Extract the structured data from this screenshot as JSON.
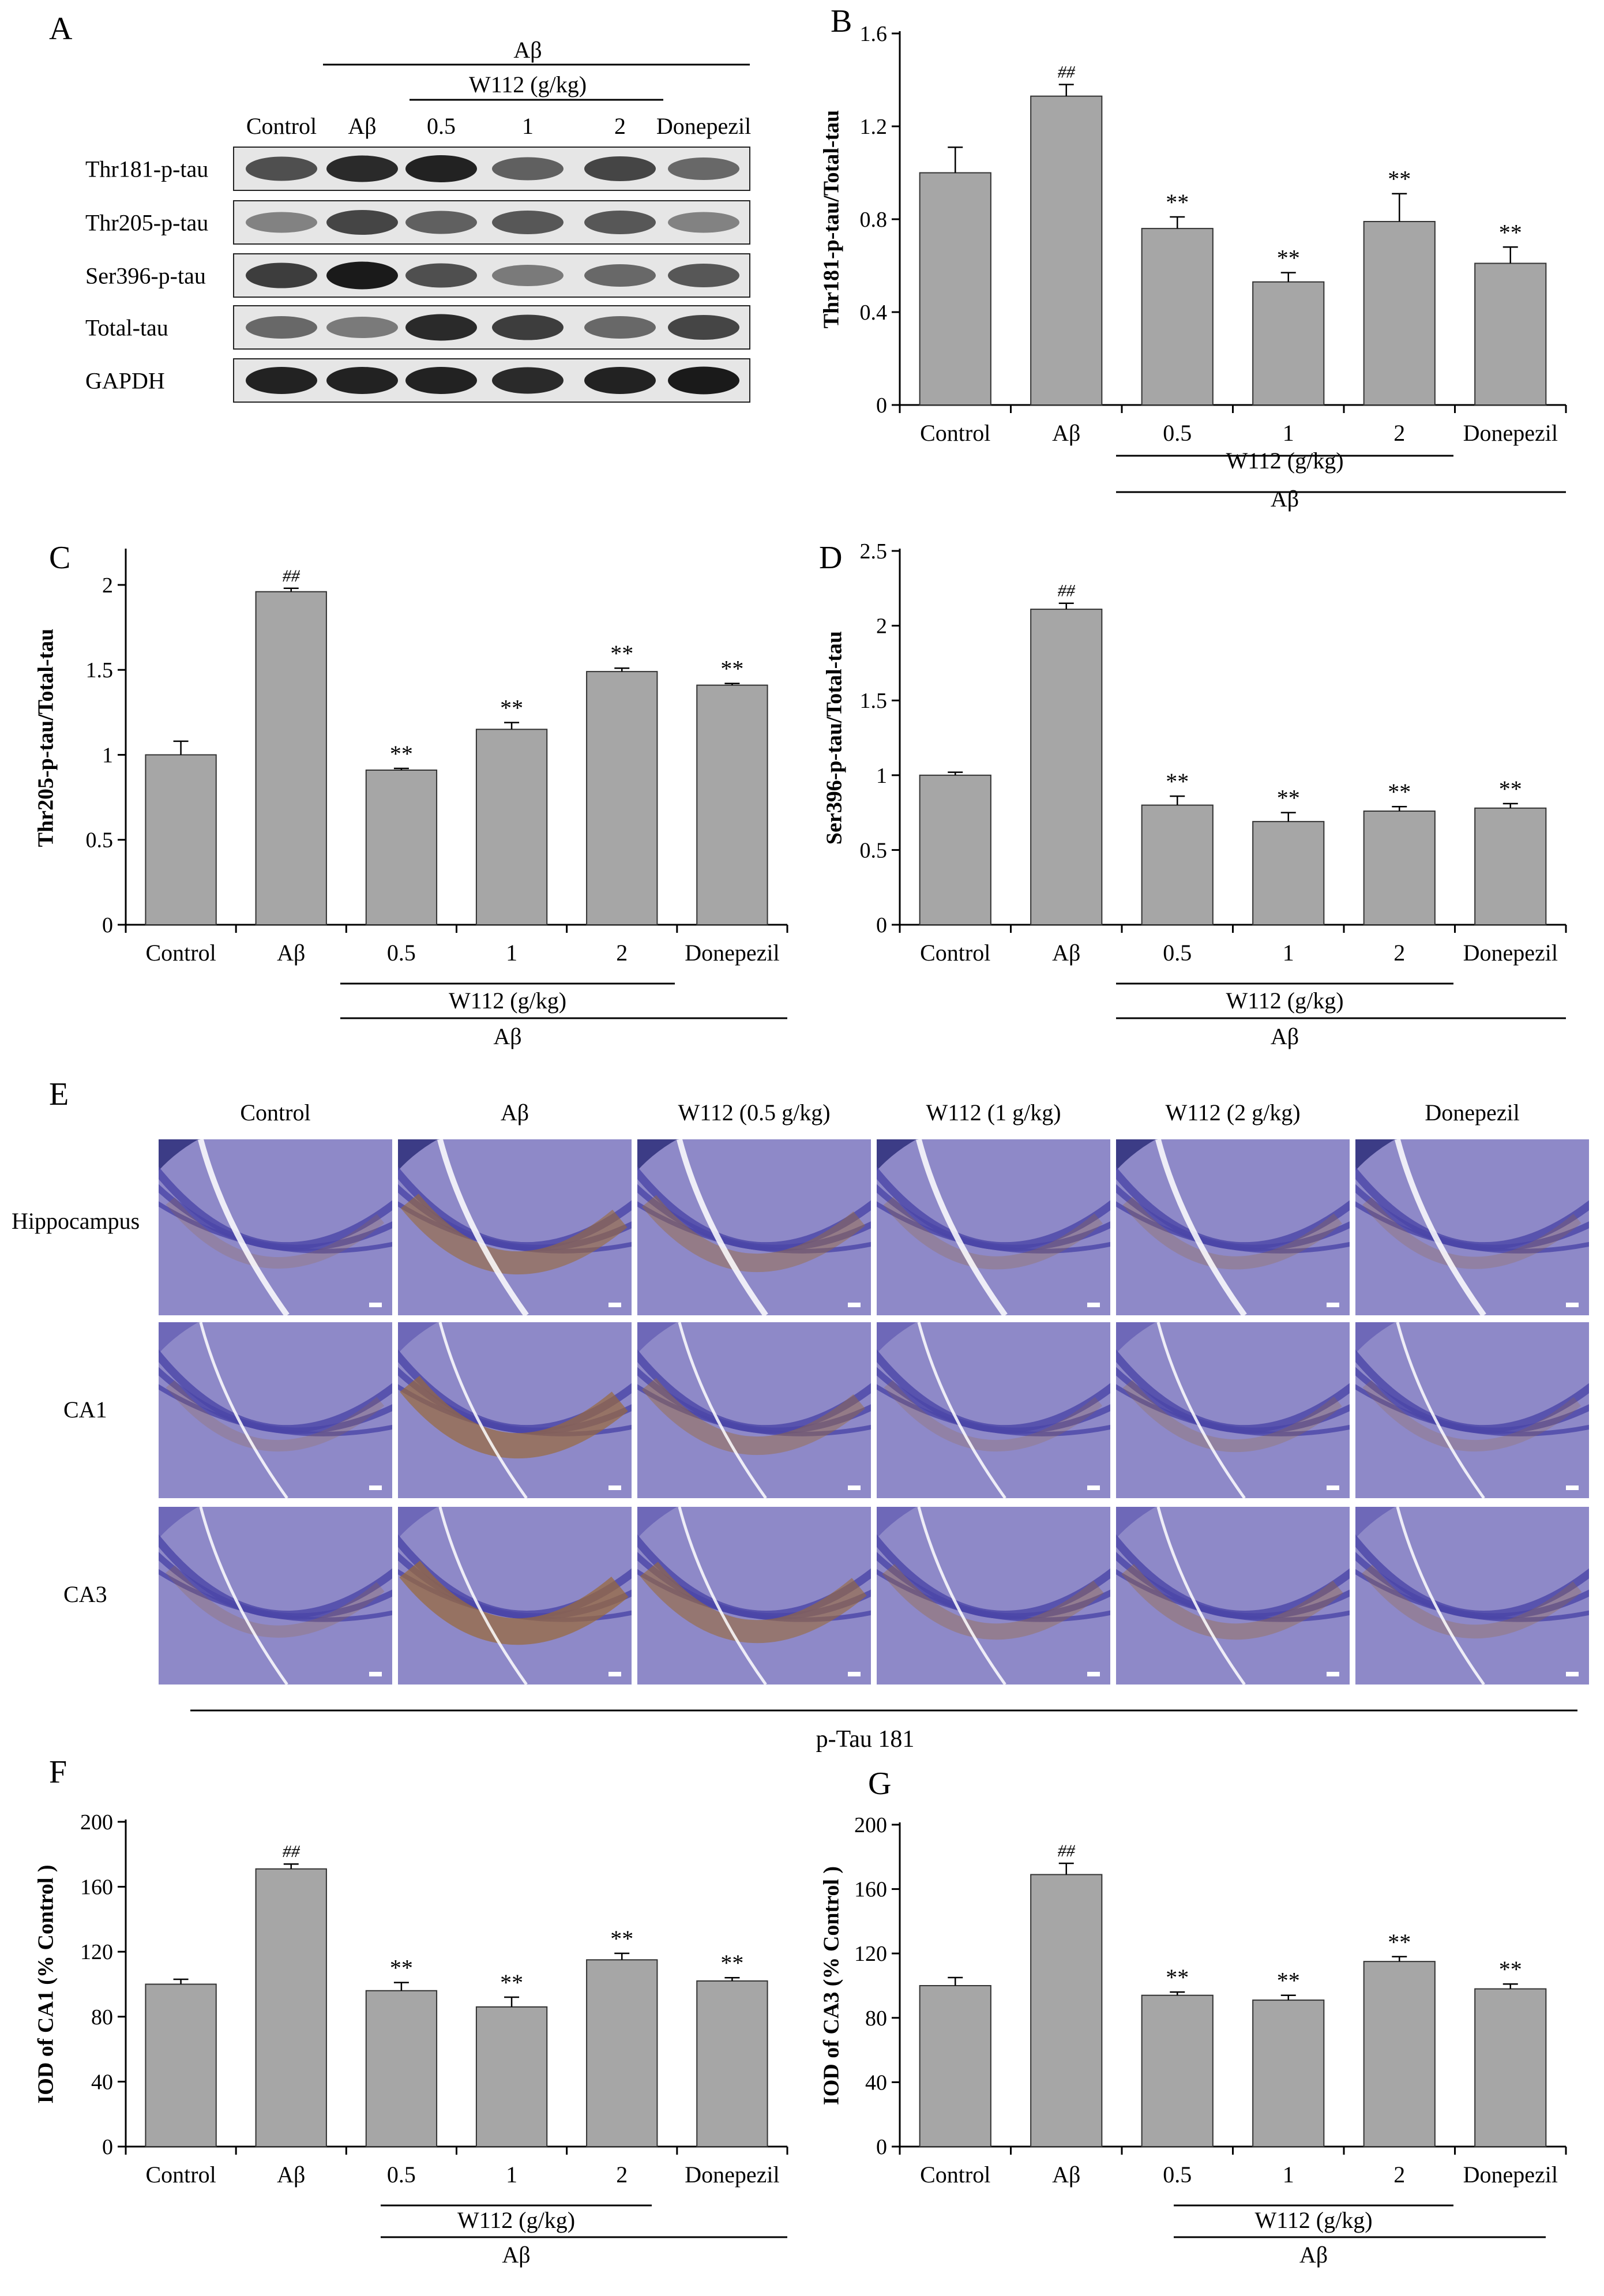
{
  "common": {
    "groups": [
      "Control",
      "Aβ",
      "0.5",
      "1",
      "2",
      "Donepezil"
    ],
    "w112_label": "W112  (g/kg)",
    "abeta_label": "Aβ",
    "sig_hash": "##",
    "sig_star": "**"
  },
  "colors": {
    "bar_fill": "#a6a6a6",
    "bar_stroke": "#333333",
    "western_bg": "#e6e6e6",
    "band": "#1a1a1a",
    "ihc_background": "#3c3c86",
    "ihc_tissue": "#8e89c8",
    "ihc_brown": "#9a6a3a"
  },
  "panel_a": {
    "letter": "A",
    "abeta_header": "Aβ",
    "w112_header": "W112  (g/kg)",
    "lanes": [
      "Control",
      "Aβ",
      "0.5",
      "1",
      "2",
      "Donepezil"
    ],
    "rows": [
      "Thr181-p-tau",
      "Thr205-p-tau",
      "Ser396-p-tau",
      "Total-tau",
      "GAPDH"
    ],
    "intensity": [
      [
        0.7,
        0.9,
        0.95,
        0.6,
        0.75,
        0.55
      ],
      [
        0.4,
        0.75,
        0.6,
        0.65,
        0.65,
        0.4
      ],
      [
        0.8,
        1.0,
        0.7,
        0.45,
        0.55,
        0.65
      ],
      [
        0.55,
        0.45,
        0.9,
        0.8,
        0.55,
        0.75
      ],
      [
        0.95,
        0.95,
        0.95,
        0.9,
        0.95,
        1.0
      ]
    ]
  },
  "chart_data": [
    {
      "id": "B",
      "letter": "B",
      "type": "bar",
      "categories": [
        "Control",
        "Aβ",
        "0.5",
        "1",
        "2",
        "Donepezil"
      ],
      "values": [
        1.0,
        1.33,
        0.76,
        0.53,
        0.79,
        0.61
      ],
      "errors": [
        0.11,
        0.05,
        0.05,
        0.04,
        0.12,
        0.07
      ],
      "annotations": [
        "",
        "##",
        "**",
        "**",
        "**",
        "**"
      ],
      "ylabel": "Thr181-p-tau/Total-tau",
      "ylim": [
        0,
        1.6
      ],
      "yticks": [
        "0",
        "0.4",
        "0.8",
        "1.2",
        "1.6"
      ],
      "ytick_values": [
        0,
        0.4,
        0.8,
        1.2,
        1.6
      ]
    },
    {
      "id": "C",
      "letter": "C",
      "type": "bar",
      "categories": [
        "Control",
        "Aβ",
        "0.5",
        "1",
        "2",
        "Donepezil"
      ],
      "values": [
        1.0,
        1.96,
        0.91,
        1.15,
        1.49,
        1.41
      ],
      "errors": [
        0.08,
        0.02,
        0.01,
        0.04,
        0.02,
        0.01
      ],
      "annotations": [
        "",
        "##",
        "**",
        "**",
        "**",
        "**"
      ],
      "ylabel": "Thr205-p-tau/Total-tau",
      "ylim": [
        0,
        2.2
      ],
      "yticks": [
        "0",
        "0.5",
        "1",
        "1.5",
        "2"
      ],
      "ytick_values": [
        0,
        0.5,
        1,
        1.5,
        2
      ]
    },
    {
      "id": "D",
      "letter": "D",
      "type": "bar",
      "categories": [
        "Control",
        "Aβ",
        "0.5",
        "1",
        "2",
        "Donepezil"
      ],
      "values": [
        1.0,
        2.11,
        0.8,
        0.69,
        0.76,
        0.78
      ],
      "errors": [
        0.02,
        0.04,
        0.06,
        0.06,
        0.03,
        0.03
      ],
      "annotations": [
        "",
        "##",
        "**",
        "**",
        "**",
        "**"
      ],
      "ylabel": "Ser396-p-tau/Total-tau",
      "ylim": [
        0,
        2.5
      ],
      "yticks": [
        "0",
        "0.5",
        "1",
        "1.5",
        "2",
        "2.5"
      ],
      "ytick_values": [
        0,
        0.5,
        1,
        1.5,
        2,
        2.5
      ]
    },
    {
      "id": "F",
      "letter": "F",
      "type": "bar",
      "categories": [
        "Control",
        "Aβ",
        "0.5",
        "1",
        "2",
        "Donepezil"
      ],
      "values": [
        100,
        171,
        96,
        86,
        115,
        102
      ],
      "errors": [
        3,
        3,
        5,
        6,
        4,
        2
      ],
      "annotations": [
        "",
        "##",
        "**",
        "**",
        "**",
        "**"
      ],
      "ylabel": "IOD of CA1 (% Control )",
      "ylim": [
        0,
        200
      ],
      "yticks": [
        "0",
        "40",
        "80",
        "120",
        "160",
        "200"
      ],
      "ytick_values": [
        0,
        40,
        80,
        120,
        160,
        200
      ]
    },
    {
      "id": "G",
      "letter": "G",
      "type": "bar",
      "categories": [
        "Control",
        "Aβ",
        "0.5",
        "1",
        "2",
        "Donepezil"
      ],
      "values": [
        100,
        169,
        94,
        91,
        115,
        98
      ],
      "errors": [
        5,
        7,
        2,
        3,
        3,
        3
      ],
      "annotations": [
        "",
        "##",
        "**",
        "**",
        "**",
        "**"
      ],
      "ylabel": "IOD of CA3 (% Control )",
      "ylim": [
        0,
        200
      ],
      "yticks": [
        "0",
        "40",
        "80",
        "120",
        "160",
        "200"
      ],
      "ytick_values": [
        0,
        40,
        80,
        120,
        160,
        200
      ]
    }
  ],
  "panel_e": {
    "letter": "E",
    "columns": [
      "Control",
      "Aβ",
      "W112 (0.5 g/kg)",
      "W112 (1 g/kg)",
      "W112 (2 g/kg)",
      "Donepezil"
    ],
    "rows": [
      "Hippocampus",
      "CA1",
      "CA3"
    ],
    "brown_level": [
      [
        0.05,
        0.55,
        0.35,
        0.12,
        0.12,
        0.08
      ],
      [
        0.05,
        0.65,
        0.35,
        0.05,
        0.1,
        0.05
      ],
      [
        0.08,
        0.7,
        0.55,
        0.25,
        0.25,
        0.15
      ]
    ],
    "caption": "p-Tau 181"
  }
}
